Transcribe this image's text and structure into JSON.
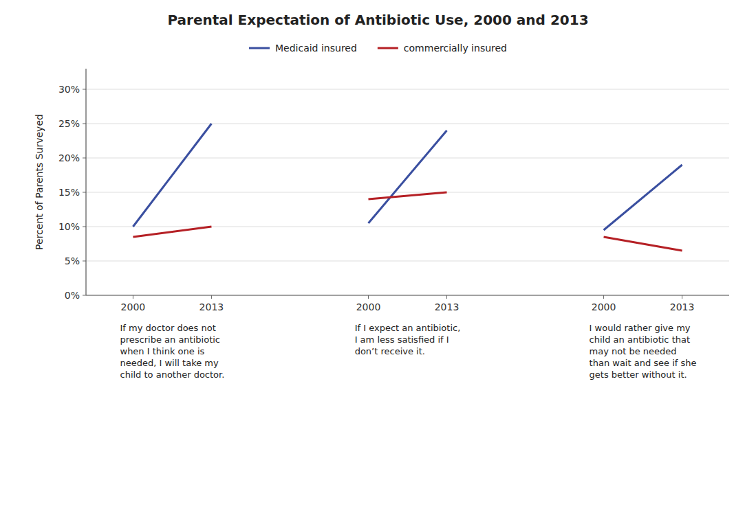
{
  "chart_data": {
    "type": "line",
    "title": "Parental Expectation of Antibiotic Use, 2000 and 2013",
    "ylabel": "Percent of Parents Surveyed",
    "categories": [
      "2000",
      "2013",
      null,
      "2000",
      "2013",
      null,
      "2000",
      "2013"
    ],
    "series": [
      {
        "name": "Medicaid insured",
        "color": "#3a4fa0",
        "values": [
          10,
          25,
          null,
          10.5,
          24,
          null,
          9.5,
          19
        ]
      },
      {
        "name": "commercially insured",
        "color": "#b52025",
        "values": [
          8.5,
          10,
          null,
          14,
          15,
          null,
          8.5,
          6.5
        ]
      }
    ],
    "annotations": [
      "If my doctor does not\nprescribe an antibiotic\nwhen I think one is\nneeded, I will take my\nchild to another doctor.",
      "If I expect an antibiotic,\nI am less satisfied if I\ndon’t receive it.",
      "I would rather give my\nchild an antibiotic that\nmay not be needed\nthan wait and see if she\ngets better without it."
    ],
    "ylim": [
      0,
      33
    ],
    "yticks": [
      {
        "value": 0,
        "label": "0%"
      },
      {
        "value": 5,
        "label": "5%"
      },
      {
        "value": 10,
        "label": "10%"
      },
      {
        "value": 15,
        "label": "15%"
      },
      {
        "value": 20,
        "label": "20%"
      },
      {
        "value": 25,
        "label": "25%"
      },
      {
        "value": 30,
        "label": "30%"
      }
    ],
    "grid": true,
    "legend": "top"
  }
}
